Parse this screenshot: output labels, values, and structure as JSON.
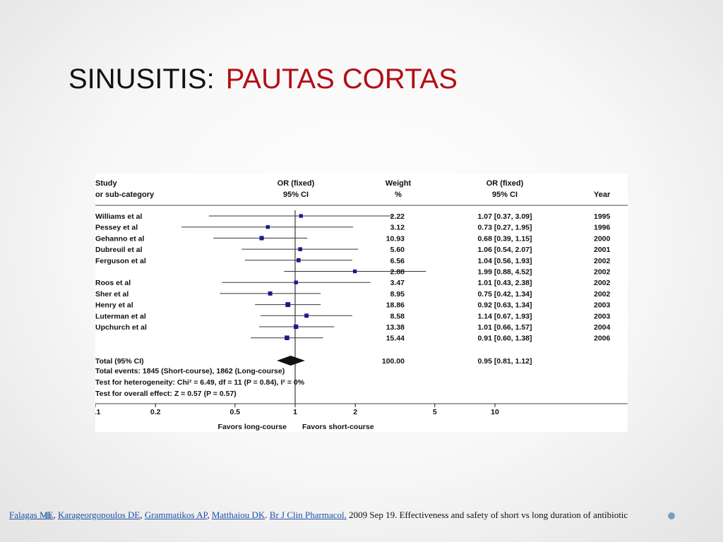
{
  "slide": {
    "title_main": "SINUSITIS:",
    "title_accent": "PAUTAS CORTAS",
    "accent_color": "#b30f16"
  },
  "chart_data": {
    "type": "forest",
    "headers": {
      "study_line1": "Study",
      "study_line2": "or sub-category",
      "or_line1": "OR (fixed)",
      "or_line2": "95% CI",
      "weight_line1": "Weight",
      "weight_line2": "%",
      "orci_line1": "OR (fixed)",
      "orci_line2": "95% CI",
      "year": "Year"
    },
    "studies": [
      {
        "name": "Williams et al",
        "weight": 2.22,
        "or": 1.07,
        "lo": 0.37,
        "hi": 3.09,
        "ci_text": "1.07 [0.37, 3.09]",
        "year": "1995"
      },
      {
        "name": "Pessey et al",
        "weight": 3.12,
        "or": 0.73,
        "lo": 0.27,
        "hi": 1.95,
        "ci_text": "0.73 [0.27, 1.95]",
        "year": "1996"
      },
      {
        "name": "Gehanno et al",
        "weight": 10.93,
        "or": 0.68,
        "lo": 0.39,
        "hi": 1.15,
        "ci_text": "0.68 [0.39, 1.15]",
        "year": "2000"
      },
      {
        "name": "Dubreuil et al",
        "weight": 5.6,
        "or": 1.06,
        "lo": 0.54,
        "hi": 2.07,
        "ci_text": "1.06 [0.54, 2.07]",
        "year": "2001"
      },
      {
        "name": "Ferguson et al",
        "weight": 6.56,
        "or": 1.04,
        "lo": 0.56,
        "hi": 1.93,
        "ci_text": "1.04 [0.56, 1.93]",
        "year": "2002"
      },
      {
        "name": "",
        "weight": 2.88,
        "or": 1.99,
        "lo": 0.88,
        "hi": 4.52,
        "ci_text": "1.99 [0.88, 4.52]",
        "year": "2002"
      },
      {
        "name": "Roos et al",
        "weight": 3.47,
        "or": 1.01,
        "lo": 0.43,
        "hi": 2.38,
        "ci_text": "1.01 [0.43, 2.38]",
        "year": "2002"
      },
      {
        "name": "Sher et al",
        "weight": 8.95,
        "or": 0.75,
        "lo": 0.42,
        "hi": 1.34,
        "ci_text": "0.75 [0.42, 1.34]",
        "year": "2002"
      },
      {
        "name": "Henry et al",
        "weight": 18.86,
        "or": 0.92,
        "lo": 0.63,
        "hi": 1.34,
        "ci_text": "0.92 [0.63, 1.34]",
        "year": "2003"
      },
      {
        "name": "Luterman et al",
        "weight": 8.58,
        "or": 1.14,
        "lo": 0.67,
        "hi": 1.93,
        "ci_text": "1.14 [0.67, 1.93]",
        "year": "2003"
      },
      {
        "name": "Upchurch et al",
        "weight": 13.38,
        "or": 1.01,
        "lo": 0.66,
        "hi": 1.57,
        "ci_text": "1.01 [0.66, 1.57]",
        "year": "2004"
      },
      {
        "name": "",
        "weight": 15.44,
        "or": 0.91,
        "lo": 0.6,
        "hi": 1.38,
        "ci_text": "0.91 [0.60, 1.38]",
        "year": "2006"
      }
    ],
    "total": {
      "label": "Total (95% CI)",
      "weight_text": "100.00",
      "or": 0.95,
      "lo": 0.81,
      "hi": 1.12,
      "ci_text": "0.95 [0.81, 1.12]"
    },
    "footnotes": [
      "Total events: 1845 (Short-course), 1862 (Long-course)",
      "Test for heterogeneity: Chi² = 6.49, df = 11 (P = 0.84), I² = 0%",
      "Test for overall effect: Z = 0.57 (P = 0.57)"
    ],
    "x_axis": {
      "scale": "log",
      "range": [
        0.1,
        10
      ],
      "ticks": [
        0.1,
        0.2,
        0.5,
        1,
        2,
        5,
        10
      ],
      "tick_labels": [
        "0.1",
        "0.2",
        "0.5",
        "1",
        "2",
        "5",
        "10"
      ],
      "label_left": "Favors long-course",
      "label_right": "Favors short-course"
    },
    "marker_color": "#1a1a8c"
  },
  "citation": {
    "authors": [
      {
        "text": "Falagas ME",
        "sep": ", "
      },
      {
        "text": "Karageorgopoulos DE",
        "sep": ", "
      },
      {
        "text": "Grammatikos AP",
        "sep": ", "
      },
      {
        "text": "Matthaiou DK",
        "sep": ".  "
      },
      {
        "text": "Br J Clin Pharmacol.",
        "sep": " "
      }
    ],
    "rest": "2009  Sep 19. Effectiveness and safety of  short vs long duration  of antibiotic"
  }
}
